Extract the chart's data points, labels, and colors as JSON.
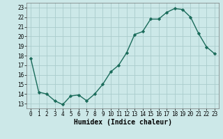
{
  "x": [
    0,
    1,
    2,
    3,
    4,
    5,
    6,
    7,
    8,
    9,
    10,
    11,
    12,
    13,
    14,
    15,
    16,
    17,
    18,
    19,
    20,
    21,
    22,
    23
  ],
  "y": [
    17.7,
    14.2,
    14.0,
    13.3,
    12.9,
    13.8,
    13.9,
    13.3,
    14.0,
    15.0,
    16.3,
    17.0,
    18.3,
    20.2,
    20.5,
    21.8,
    21.8,
    22.5,
    22.9,
    22.8,
    22.0,
    20.3,
    18.9,
    18.2
  ],
  "xlabel": "Humidex (Indice chaleur)",
  "ylim": [
    12.5,
    23.5
  ],
  "xlim": [
    -0.5,
    23.5
  ],
  "yticks": [
    13,
    14,
    15,
    16,
    17,
    18,
    19,
    20,
    21,
    22,
    23
  ],
  "xticks": [
    0,
    1,
    2,
    3,
    4,
    5,
    6,
    7,
    8,
    9,
    10,
    11,
    12,
    13,
    14,
    15,
    16,
    17,
    18,
    19,
    20,
    21,
    22,
    23
  ],
  "line_color": "#1a6b5a",
  "marker_color": "#1a6b5a",
  "bg_color": "#cce8e8",
  "grid_color": "#aacccc",
  "tick_fontsize": 5.5,
  "xlabel_fontsize": 7
}
